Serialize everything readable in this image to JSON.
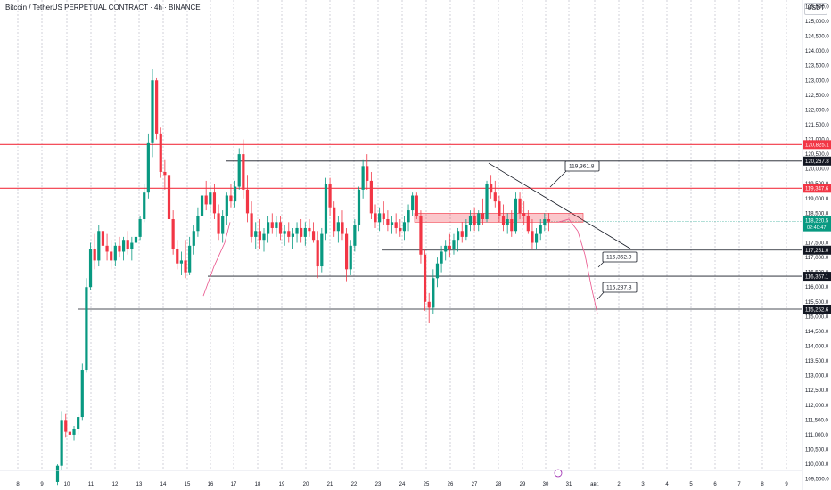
{
  "chart_data": {
    "type": "candlestick",
    "title": "Bitcoin / TetherUS PERPETUAL CONTRACT · 4h · BINANCE",
    "currency": "USDT",
    "ylim": [
      109300,
      125700
    ],
    "y_ticks": [
      109500,
      110000,
      110500,
      111000,
      111500,
      112000,
      112500,
      113000,
      113500,
      114000,
      114500,
      115000,
      115500,
      116000,
      116500,
      117000,
      117500,
      118000,
      118500,
      119000,
      119500,
      120000,
      120500,
      121000,
      121500,
      122000,
      122500,
      123000,
      123500,
      124000,
      124500,
      125000,
      125500
    ],
    "x_ticks": [
      "8",
      "9",
      "10",
      "11",
      "12",
      "13",
      "14",
      "15",
      "16",
      "17",
      "18",
      "19",
      "20",
      "21",
      "22",
      "23",
      "24",
      "25",
      "26",
      "27",
      "28",
      "29",
      "30",
      "31",
      "авг.",
      "2",
      "3",
      "4",
      "5",
      "6",
      "7",
      "8",
      "9"
    ],
    "candles": [
      [
        109400,
        110000,
        109300,
        109950
      ],
      [
        109950,
        111800,
        109800,
        111500
      ],
      [
        111500,
        111700,
        110900,
        111100
      ],
      [
        111100,
        111400,
        110800,
        111000
      ],
      [
        111000,
        111300,
        110800,
        111200
      ],
      [
        111200,
        111700,
        111000,
        111600
      ],
      [
        111600,
        113400,
        111500,
        113200
      ],
      [
        113200,
        116300,
        113100,
        116000
      ],
      [
        116000,
        117500,
        115900,
        117300
      ],
      [
        117300,
        117800,
        116600,
        116900
      ],
      [
        116900,
        118100,
        116700,
        117900
      ],
      [
        117900,
        118300,
        117200,
        117400
      ],
      [
        117400,
        117800,
        116900,
        117200
      ],
      [
        117200,
        117600,
        116600,
        116900
      ],
      [
        116900,
        117500,
        116700,
        117400
      ],
      [
        117400,
        117700,
        117000,
        117200
      ],
      [
        117200,
        117700,
        116900,
        117600
      ],
      [
        117600,
        117900,
        117100,
        117300
      ],
      [
        117300,
        117700,
        116900,
        117500
      ],
      [
        117500,
        117900,
        117200,
        117700
      ],
      [
        117700,
        118400,
        117600,
        118300
      ],
      [
        118300,
        119500,
        118200,
        119200
      ],
      [
        119200,
        121200,
        119000,
        120900
      ],
      [
        120900,
        123400,
        120400,
        123000
      ],
      [
        123000,
        123100,
        121000,
        121200
      ],
      [
        121200,
        121400,
        119700,
        119900
      ],
      [
        119900,
        120300,
        119300,
        119800
      ],
      [
        119800,
        120100,
        118000,
        118300
      ],
      [
        118300,
        118600,
        117100,
        117300
      ],
      [
        117300,
        117600,
        116600,
        116800
      ],
      [
        116800,
        117200,
        116400,
        116900
      ],
      [
        116900,
        117600,
        116300,
        116500
      ],
      [
        116500,
        117700,
        116400,
        117400
      ],
      [
        117400,
        118100,
        117100,
        117900
      ],
      [
        117900,
        118700,
        117700,
        118400
      ],
      [
        118400,
        119300,
        118200,
        119100
      ],
      [
        119100,
        119600,
        118600,
        118800
      ],
      [
        118800,
        119400,
        118500,
        119200
      ],
      [
        119200,
        119500,
        118300,
        118500
      ],
      [
        118500,
        118800,
        117600,
        117800
      ],
      [
        117800,
        118600,
        117500,
        118400
      ],
      [
        118400,
        119200,
        118100,
        119100
      ],
      [
        119100,
        119500,
        118700,
        118900
      ],
      [
        118900,
        119600,
        118700,
        119400
      ],
      [
        119400,
        120700,
        119300,
        120500
      ],
      [
        120500,
        121000,
        119000,
        119300
      ],
      [
        119300,
        119800,
        118200,
        118500
      ],
      [
        118500,
        118900,
        117500,
        117700
      ],
      [
        117700,
        118200,
        117300,
        117900
      ],
      [
        117900,
        118300,
        117300,
        117600
      ],
      [
        117600,
        118000,
        117200,
        117800
      ],
      [
        117800,
        118400,
        117500,
        118200
      ],
      [
        118200,
        118500,
        117800,
        118000
      ],
      [
        118000,
        118400,
        117700,
        118200
      ],
      [
        118200,
        118400,
        117600,
        117800
      ],
      [
        117800,
        118100,
        117400,
        117900
      ],
      [
        117900,
        118200,
        117500,
        117700
      ],
      [
        117700,
        118000,
        117300,
        117800
      ],
      [
        117800,
        118200,
        117500,
        118000
      ],
      [
        118000,
        118300,
        117500,
        117700
      ],
      [
        117700,
        118200,
        117400,
        118000
      ],
      [
        118000,
        118300,
        117700,
        117900
      ],
      [
        117900,
        118200,
        117500,
        117600
      ],
      [
        117600,
        117900,
        116300,
        116700
      ],
      [
        116700,
        118000,
        116500,
        117800
      ],
      [
        117800,
        119700,
        117600,
        119500
      ],
      [
        119500,
        119700,
        118400,
        118700
      ],
      [
        118700,
        118900,
        117700,
        117900
      ],
      [
        117900,
        118400,
        117500,
        118200
      ],
      [
        118200,
        118600,
        117600,
        117800
      ],
      [
        117800,
        118000,
        116200,
        116600
      ],
      [
        116600,
        117600,
        116400,
        117400
      ],
      [
        117400,
        118300,
        117200,
        118100
      ],
      [
        118100,
        119400,
        117900,
        119300
      ],
      [
        119300,
        120300,
        119000,
        120100
      ],
      [
        120100,
        120500,
        119300,
        119600
      ],
      [
        119600,
        119900,
        118300,
        118500
      ],
      [
        118500,
        118800,
        118000,
        118200
      ],
      [
        118200,
        118700,
        117900,
        118500
      ],
      [
        118500,
        118900,
        118100,
        118300
      ],
      [
        118300,
        118600,
        117900,
        118100
      ],
      [
        118100,
        118400,
        117800,
        118200
      ],
      [
        118200,
        118500,
        117800,
        118000
      ],
      [
        118000,
        118300,
        117700,
        117900
      ],
      [
        117900,
        118400,
        117600,
        118200
      ],
      [
        118200,
        118800,
        117900,
        118600
      ],
      [
        118600,
        119200,
        118400,
        119100
      ],
      [
        119100,
        119200,
        118300,
        118400
      ],
      [
        118400,
        118600,
        116800,
        117100
      ],
      [
        117100,
        117300,
        115200,
        115500
      ],
      [
        115500,
        115800,
        114800,
        115300
      ],
      [
        115300,
        116600,
        115100,
        116300
      ],
      [
        116300,
        117000,
        116000,
        116800
      ],
      [
        116800,
        117400,
        116500,
        117200
      ],
      [
        117200,
        117600,
        116900,
        117400
      ],
      [
        117400,
        117800,
        117000,
        117300
      ],
      [
        117300,
        117800,
        117100,
        117600
      ],
      [
        117600,
        118000,
        117200,
        117900
      ],
      [
        117900,
        118200,
        117500,
        117700
      ],
      [
        117700,
        118300,
        117600,
        118100
      ],
      [
        118100,
        118600,
        117900,
        118400
      ],
      [
        118400,
        118700,
        117900,
        118100
      ],
      [
        118100,
        118600,
        117900,
        118500
      ],
      [
        118500,
        119000,
        118100,
        118300
      ],
      [
        118300,
        119600,
        118200,
        119500
      ],
      [
        119500,
        119800,
        119000,
        119200
      ],
      [
        119200,
        119600,
        118700,
        118900
      ],
      [
        118900,
        119100,
        118200,
        118400
      ],
      [
        118400,
        118800,
        117900,
        118100
      ],
      [
        118100,
        118500,
        117800,
        118300
      ],
      [
        118300,
        118600,
        117700,
        117900
      ],
      [
        117900,
        119200,
        117800,
        119000
      ],
      [
        119000,
        119200,
        118300,
        118500
      ],
      [
        118500,
        118900,
        118100,
        118400
      ],
      [
        118400,
        118600,
        117800,
        117900
      ],
      [
        117900,
        118300,
        117300,
        117500
      ],
      [
        117500,
        118000,
        117300,
        117800
      ],
      [
        117800,
        118300,
        117600,
        118100
      ],
      [
        118100,
        118500,
        117900,
        118300
      ],
      [
        118300,
        118500,
        117900,
        118220.5
      ]
    ],
    "horizontal_levels": [
      {
        "price": 120825.1,
        "label": "120,825.1",
        "color": "#f23645"
      },
      {
        "price": 120267.8,
        "label": "120,267.8",
        "color": "#131722"
      },
      {
        "price": 119347.6,
        "label": "119,347.6",
        "color": "#f23645"
      },
      {
        "price": 117251.0,
        "label": "117,251.0",
        "color": "#131722"
      },
      {
        "price": 116367.1,
        "label": "116,367.1",
        "color": "#131722"
      },
      {
        "price": 115252.6,
        "label": "115,252.6",
        "color": "#131722"
      }
    ],
    "callouts": [
      {
        "label": "119,361.8"
      },
      {
        "label": "116,362.9"
      },
      {
        "label": "115,287.8"
      }
    ],
    "last_price": {
      "label": "118,220.5",
      "countdown": "02:40:47",
      "color": "#089981"
    },
    "colors": {
      "up": "#089981",
      "down": "#f23645",
      "level_red": "#f23645",
      "projection": "#e9528a"
    }
  }
}
